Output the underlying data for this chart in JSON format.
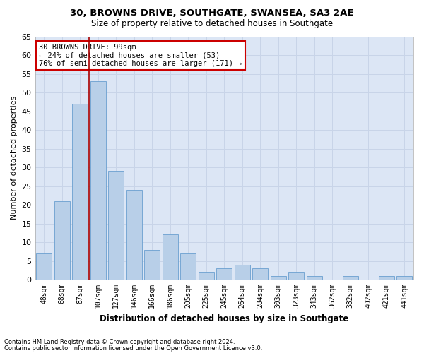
{
  "title1": "30, BROWNS DRIVE, SOUTHGATE, SWANSEA, SA3 2AE",
  "title2": "Size of property relative to detached houses in Southgate",
  "xlabel": "Distribution of detached houses by size in Southgate",
  "ylabel": "Number of detached properties",
  "categories": [
    "48sqm",
    "68sqm",
    "87sqm",
    "107sqm",
    "127sqm",
    "146sqm",
    "166sqm",
    "186sqm",
    "205sqm",
    "225sqm",
    "245sqm",
    "264sqm",
    "284sqm",
    "303sqm",
    "323sqm",
    "343sqm",
    "362sqm",
    "382sqm",
    "402sqm",
    "421sqm",
    "441sqm"
  ],
  "values": [
    7,
    21,
    47,
    53,
    29,
    24,
    8,
    12,
    7,
    2,
    3,
    4,
    3,
    1,
    2,
    1,
    0,
    1,
    0,
    1,
    1
  ],
  "bar_color": "#b8cfe8",
  "bar_edge_color": "#6a9fd0",
  "annotation_title": "30 BROWNS DRIVE: 99sqm",
  "annotation_line1": "← 24% of detached houses are smaller (53)",
  "annotation_line2": "76% of semi-detached houses are larger (171) →",
  "annotation_box_facecolor": "#ffffff",
  "annotation_box_edgecolor": "#cc0000",
  "vline_color": "#aa0000",
  "vline_x": 2.5,
  "ylim": [
    0,
    65
  ],
  "yticks": [
    0,
    5,
    10,
    15,
    20,
    25,
    30,
    35,
    40,
    45,
    50,
    55,
    60,
    65
  ],
  "grid_color": "#c8d4e8",
  "bg_color": "#dce6f5",
  "footer1": "Contains HM Land Registry data © Crown copyright and database right 2024.",
  "footer2": "Contains public sector information licensed under the Open Government Licence v3.0."
}
